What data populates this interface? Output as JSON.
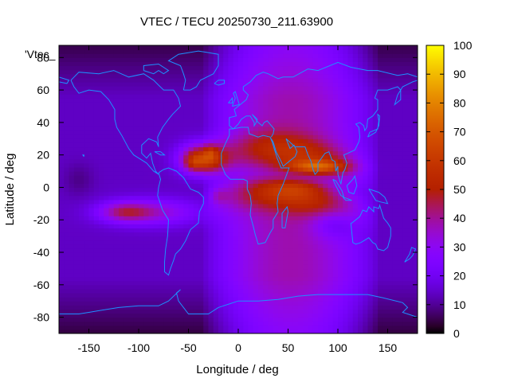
{
  "chart_data": {
    "type": "heatmap",
    "title": "VTEC / TECU 20250730_211.63900",
    "xlabel": "Longitude / deg",
    "ylabel": "Latitude / deg",
    "key_label": "'Vtec_",
    "xlim": [
      -180,
      180
    ],
    "ylim": [
      -90,
      87.5
    ],
    "xticks": [
      -150,
      -100,
      -50,
      0,
      50,
      100,
      150
    ],
    "yticks": [
      -80,
      -60,
      -40,
      -20,
      0,
      20,
      40,
      60,
      80
    ],
    "zlim": [
      0,
      100
    ],
    "zticks": [
      0,
      10,
      20,
      30,
      40,
      50,
      60,
      70,
      80,
      90,
      100
    ],
    "colormap": "gnuplot-pm3d",
    "grid_resolution_deg": [
      5,
      2.5
    ],
    "grid": false,
    "features": [
      {
        "lon": -35,
        "lat": 18,
        "lon_width": 22,
        "lat_width": 9,
        "tec": 48
      },
      {
        "lon": -45,
        "lat": 15,
        "lon_width": 10,
        "lat_width": 5,
        "tec": 12
      },
      {
        "lon": -28,
        "lat": 22,
        "lon_width": 5,
        "lat_width": 4,
        "tec": 8
      },
      {
        "lon": -20,
        "lat": -5,
        "lon_width": 10,
        "lat_width": 5,
        "tec": 10
      },
      {
        "lon": -115,
        "lat": -15,
        "lon_width": 25,
        "lat_width": 6,
        "tec": 20
      },
      {
        "lon": -85,
        "lat": -15,
        "lon_width": 45,
        "lat_width": 8,
        "tec": 20
      },
      {
        "lon": 80,
        "lat": 13,
        "lon_width": 30,
        "lat_width": 4,
        "tec": 28
      },
      {
        "lon": 60,
        "lat": 0,
        "lon_width": 30,
        "lat_width": 5,
        "tec": 10
      },
      {
        "lon": 95,
        "lat": -22,
        "lon_width": 22,
        "lat_width": 9,
        "tec": -12
      },
      {
        "lon": -160,
        "lat": 5,
        "lon_width": 15,
        "lat_width": 10,
        "tec": -5
      }
    ]
  },
  "coastline_color": "#1e90ff"
}
